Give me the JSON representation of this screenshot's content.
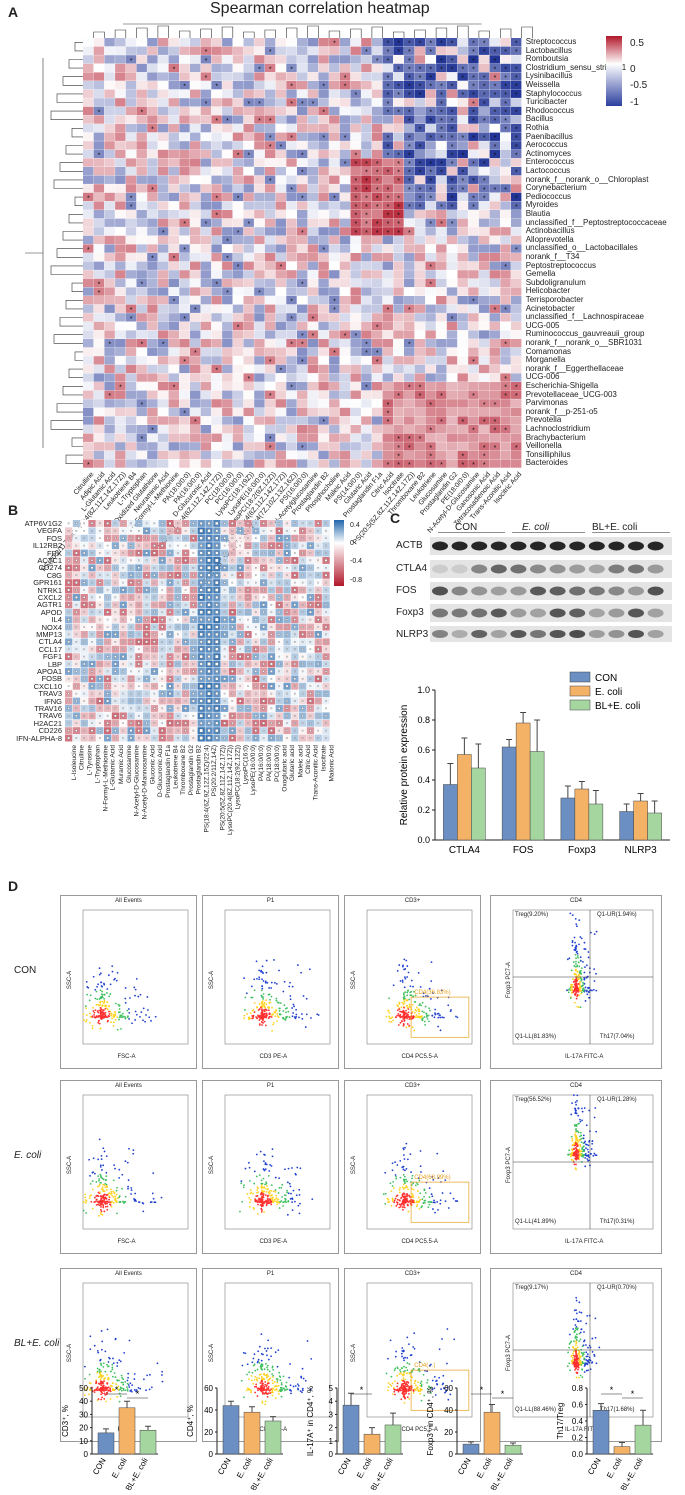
{
  "panelA": {
    "label": "A",
    "title": "Spearman correlation heatmap",
    "rows": [
      "Streptococcus",
      "Lactobacillus",
      "Romboutsia",
      "Clostridium_sensu_stricto_1",
      "Lysinibacillus",
      "Weissella",
      "Staphylococcus",
      "Turicibacter",
      "Rhodococcus",
      "Bacillus",
      "Rothia",
      "Paenibacillus",
      "Aerococcus",
      "Actinomyces",
      "Enterococcus",
      "Lactococcus",
      "norank_f__norank_o__Chloroplast",
      "Corynebacterium",
      "Pediococcus",
      "Myroides",
      "Blautia",
      "unclassified_f__Peptostreptococcaceae",
      "Actinobacillus",
      "Alloprevotella",
      "unclassified_o__Lactobacillales",
      "norank_f__T34",
      "Peptostreptococcus",
      "Gemella",
      "Subdoligranulum",
      "Helicobacter",
      "Terrisporobacter",
      "Acinetobacter",
      "unclassified_f__Lachnospiraceae",
      "UCG-005",
      "Ruminococcus_gauvreauii_group",
      "norank_f__norank_o__SBR1031",
      "Comamonas",
      "Morganella",
      "norank_f__Eggerthellaceae",
      "UCG-006",
      "Escherichia-Shigella",
      "Prevotellaceae_UCG-003",
      "Parvimonas",
      "norank_f__p-251-o5",
      "Prevotella",
      "Lachnoclostridium",
      "Brachybacterium",
      "Veillonella",
      "Tonsilliphilus",
      "Bacteroides"
    ],
    "cols": [
      "Citrulline",
      "Adipic Acid",
      "L-Glutamic Acid",
      "PS(20:2/11Z,14Z)/20:4(8Z,11Z,14Z,17Z))",
      "Leukotriene B4",
      "L-Tryptophan",
      "Oxidized Glutathione",
      "Neuraminic Acid",
      "N-Formyl-L-Methionine",
      "PA(18:0/0:0)",
      "PA(16:0/0:0)",
      "D-Glucuronic Acid",
      "LysoPC(20:4(8Z,11Z,14Z,17Z))",
      "PC(18:0/0:0)",
      "PC(16:0/0:0)",
      "LysoPC(18:1(9Z))",
      "LysoPE(16:0/0:0)",
      "LysoPC(18:2(9Z,12Z))",
      "LysoPC(20:4(8Z,11Z,14Z,17Z))",
      "PS(18:4(6Z,9Z,12Z,15Z)/22:4(7Z,10Z,13Z,16Z))",
      "PS(16:0/0:0)",
      "N-Acetylglucosamine",
      "Prostaglandin B2",
      "Phosphocholine",
      "Maleic Acid",
      "PS(14:0/0:0)",
      "Glutaric Acid",
      "Prostaglandin F1a",
      "Citric Acid",
      "Isocitrate",
      "PS(20:5(5Z,8Z,11Z,14Z,17Z))",
      "Thromboxane B2",
      "Leukotriene",
      "Glucosamine",
      "Prostaglandin G2",
      "PE(18:0/0:0)",
      "N-Acetyl-D-Glucosamine",
      "Ganosonic Acid",
      "Tetracosadienoic Acid",
      "Trans-Aconitic Acid",
      "Isocitric Acid"
    ],
    "colorbar_ticks": [
      "0.5",
      "0",
      "-0.5",
      "-1"
    ],
    "palette": {
      "pos": "#b2182b",
      "neg": "#2c3f9e",
      "mid": "#ffffff"
    }
  },
  "panelB": {
    "label": "B",
    "rows": [
      "ATP6V1G2",
      "VEGFA",
      "FOS",
      "IL12RB2",
      "FRK",
      "ACTC1",
      "CD274",
      "C8G",
      "GPR161",
      "NTRK1",
      "CXCL2",
      "AGTR1",
      "APOD",
      "IL4",
      "NOX4",
      "MMP13",
      "CTLA4",
      "CCL17",
      "FGF1",
      "LBP",
      "APOA1",
      "FOSB",
      "CXCL10",
      "TRAV3",
      "IFNG",
      "TRAV16",
      "TRAV6",
      "H2AC21",
      "CD226",
      "IFN-ALPHA-8"
    ],
    "cols": [
      "L-Isoleucine",
      "Citrulline",
      "L-Tyrosine",
      "L-Tryptophan",
      "N-Formyl-L-Methionine",
      "L-Glutamic Acid",
      "Muramic Acid",
      "Glucosamine",
      "N-Acetyl-D-Glucosamine",
      "N-Acetyl-D-Mannosamine",
      "Gluconic Acid",
      "D-Glucuronic Acid",
      "Prostaglandin F1a",
      "Leukotriene B4",
      "Thromboxane B2",
      "Prostaglandin G2",
      "Prostaglandin B2",
      "PS(18:4(6Z,9Z,12Z,15Z)/22:4)",
      "PS(20:2/11Z,14Z)",
      "PS(20:5(5Z,8Z,11Z,14Z,17Z))",
      "LysoPC(20:4(8Z,11Z,14Z,17Z))",
      "LysoPC(18:2(9Z,12Z))",
      "LysoPC(16:0)",
      "LysoPE(16:0/0:0)",
      "PA(16:0/0:0)",
      "PA(18:0/0:0)",
      "PC(18:0/0:0)",
      "Oxoglutaric acid",
      "Glutaric acid",
      "Maleic acid",
      "Citric Acid",
      "Trans-Aconitic Acid",
      "Isocitrate",
      "Malonic Acid"
    ],
    "colorbar_ticks": [
      "0.4",
      "0",
      "-0.4",
      "-0.8"
    ]
  },
  "panelC": {
    "label": "C",
    "groups": [
      "CON",
      "E. coli",
      "BL+E. coli"
    ],
    "blots": [
      "ACTB",
      "CTLA4",
      "FOS",
      "Foxp3",
      "NLRP3"
    ],
    "chart_data": {
      "type": "bar",
      "categories": [
        "CTLA4",
        "FOS",
        "Foxp3",
        "NLRP3"
      ],
      "series": [
        {
          "name": "CON",
          "values": [
            0.37,
            0.62,
            0.28,
            0.19
          ],
          "errors": [
            0.14,
            0.05,
            0.08,
            0.05
          ],
          "color": "#6b8fc2"
        },
        {
          "name": "E. coli",
          "values": [
            0.57,
            0.78,
            0.34,
            0.26
          ],
          "errors": [
            0.11,
            0.07,
            0.05,
            0.05
          ],
          "color": "#f4b266"
        },
        {
          "name": "BL+E. coli",
          "values": [
            0.48,
            0.59,
            0.24,
            0.18
          ],
          "errors": [
            0.16,
            0.21,
            0.09,
            0.08
          ],
          "color": "#a6d6a0"
        }
      ],
      "ylabel": "Relative protein expression",
      "ylim": [
        0,
        1.0
      ],
      "yticks": [
        "0.0",
        "0.2",
        "0.4",
        "0.6",
        "0.8",
        "1.0"
      ]
    }
  },
  "panelD": {
    "label": "D",
    "rows": [
      "CON",
      "E. coli",
      "BL+E. coli"
    ],
    "col_titles": [
      "All Events",
      "P1",
      "CD3+",
      "CD4"
    ],
    "axes": {
      "c1x": "FSC-A",
      "c1y": "SSC-A",
      "c2x": "CD3 PE-A",
      "c2y": "SSC-A",
      "c3x": "CD4 PC5.5-A",
      "c3y": "SSC-A",
      "c4x": "IL-17A FITC-A",
      "c4y": "Foxp3 PC7-A",
      "scale": "(x10³)"
    },
    "quadrants": [
      {
        "treg": "Treg(9.20%)",
        "ur": "Q1-UR(1.94%)",
        "ll": "Q1-LL(81.83%)",
        "th17": "Th17(7.04%)",
        "cd4": "CD4(36.83%)"
      },
      {
        "treg": "Treg(56.52%)",
        "ur": "Q1-UR(1.28%)",
        "ll": "Q1-LL(41.89%)",
        "th17": "Th17(0.31%)",
        "cd4": "CD4(68.99%)"
      },
      {
        "treg": "Treg(9.17%)",
        "ur": "Q1-UR(0.70%)",
        "ll": "Q1-LL(88.46%)",
        "th17": "Th17(1.68%)",
        "cd4": "CD4(...)"
      }
    ],
    "bar_charts": [
      {
        "ylabel": "CD3⁺, %",
        "ylim": [
          0,
          50
        ],
        "yticks": [
          "0",
          "10",
          "20",
          "30",
          "40",
          "50"
        ],
        "values": [
          16,
          35,
          18
        ],
        "errors": [
          3,
          5,
          3
        ],
        "sig": [
          [
            "*",
            0,
            1
          ],
          [
            "*",
            1,
            2
          ]
        ]
      },
      {
        "ylabel": "CD4⁺, %",
        "ylim": [
          0,
          60
        ],
        "yticks": [
          "0",
          "20",
          "40",
          "60"
        ],
        "values": [
          44,
          38,
          30
        ],
        "errors": [
          4,
          5,
          4
        ],
        "sig": []
      },
      {
        "ylabel": "IL-17A⁺ in CD4⁺, %",
        "ylim": [
          0,
          5
        ],
        "yticks": [
          "0",
          "1",
          "2",
          "3",
          "4",
          "5"
        ],
        "values": [
          3.7,
          1.5,
          2.2
        ],
        "errors": [
          0.9,
          0.5,
          0.9
        ],
        "sig": [
          [
            "*",
            0,
            1
          ]
        ]
      },
      {
        "ylabel": "Foxp3⁺ in CD4⁺, %",
        "ylim": [
          0,
          60
        ],
        "yticks": [
          "0",
          "20",
          "40",
          "60"
        ],
        "values": [
          9,
          38,
          8
        ],
        "errors": [
          2,
          7,
          2
        ],
        "sig": [
          [
            "*",
            0,
            1
          ],
          [
            "*",
            1,
            2
          ]
        ]
      },
      {
        "ylabel": "Th17/Treg",
        "ylim": [
          0,
          0.8
        ],
        "yticks": [
          "0.0",
          "0.2",
          "0.4",
          "0.6",
          "0.8"
        ],
        "values": [
          0.53,
          0.09,
          0.35
        ],
        "errors": [
          0.08,
          0.05,
          0.18
        ],
        "sig": [
          [
            "*",
            0,
            1
          ],
          [
            "*",
            1,
            2
          ]
        ]
      }
    ],
    "bar_categories": [
      "CON",
      "E. coli",
      "BL+E. coli"
    ],
    "bar_colors": [
      "#6b8fc2",
      "#f4b266",
      "#a6d6a0"
    ]
  }
}
